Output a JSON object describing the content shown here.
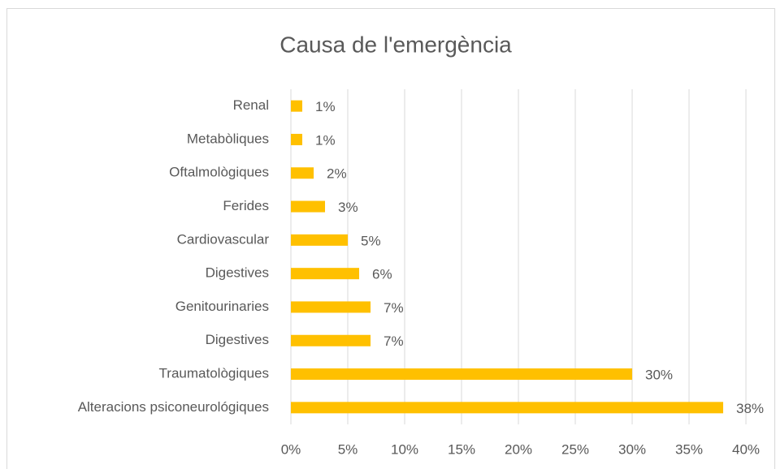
{
  "chart_data": {
    "type": "bar",
    "orientation": "horizontal",
    "title": "Causa de l'emergència",
    "categories": [
      "Renal",
      "Metabòliques",
      "Oftalmològiques",
      "Ferides",
      "Cardiovascular",
      "Digestives",
      "Genitourinaries",
      "Digestives",
      "Traumatològiques",
      "Alteracions psiconeurológiques"
    ],
    "values": [
      1,
      1,
      2,
      3,
      5,
      6,
      7,
      7,
      30,
      38
    ],
    "value_labels": [
      "1%",
      "1%",
      "2%",
      "3%",
      "5%",
      "6%",
      "7%",
      "7%",
      "30%",
      "38%"
    ],
    "color": "#ffc000",
    "xlim": [
      0,
      40
    ],
    "xticks": [
      {
        "value": 0,
        "label": "0%"
      },
      {
        "value": 5,
        "label": "5%"
      },
      {
        "value": 10,
        "label": "10%"
      },
      {
        "value": 15,
        "label": "15%"
      },
      {
        "value": 20,
        "label": "20%"
      },
      {
        "value": 25,
        "label": "25%"
      },
      {
        "value": 30,
        "label": "30%"
      },
      {
        "value": 35,
        "label": "35%"
      },
      {
        "value": 40,
        "label": "40%"
      }
    ],
    "grid": true
  }
}
